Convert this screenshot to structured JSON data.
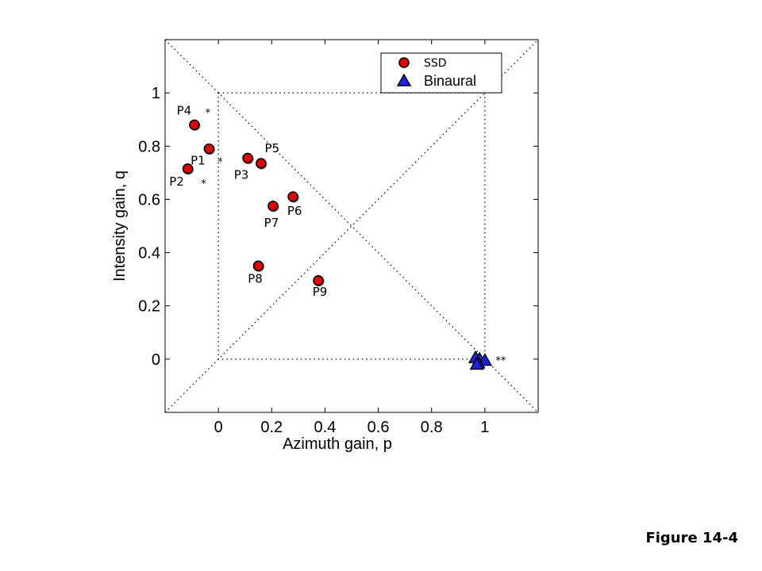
{
  "figure_caption": "Figure 14-4",
  "chart_data": {
    "type": "scatter",
    "xlabel": "Azimuth gain, p",
    "ylabel": "Intensity gain, q",
    "xlim": [
      -0.2,
      1.2
    ],
    "ylim": [
      -0.2,
      1.2
    ],
    "xticks": [
      {
        "v": 0,
        "label": "0"
      },
      {
        "v": 0.2,
        "label": "0.2"
      },
      {
        "v": 0.4,
        "label": "0.4"
      },
      {
        "v": 0.6,
        "label": "0.6"
      },
      {
        "v": 0.8,
        "label": "0.8"
      },
      {
        "v": 1,
        "label": "1"
      }
    ],
    "yticks": [
      {
        "v": 0,
        "label": "0"
      },
      {
        "v": 0.2,
        "label": "0.2"
      },
      {
        "v": 0.4,
        "label": "0.4"
      },
      {
        "v": 0.6,
        "label": "0.6"
      },
      {
        "v": 0.8,
        "label": "0.8"
      },
      {
        "v": 1,
        "label": "1"
      }
    ],
    "legend_position": "top-right",
    "series": [
      {
        "name": "SSD",
        "marker": "circle",
        "color": "#e00000",
        "points": [
          {
            "label": "P1",
            "x": -0.035,
            "y": 0.79,
            "star": "*"
          },
          {
            "label": "P2",
            "x": -0.115,
            "y": 0.715,
            "star": "*"
          },
          {
            "label": "P3",
            "x": 0.11,
            "y": 0.755
          },
          {
            "label": "P4",
            "x": -0.09,
            "y": 0.88,
            "star": "*"
          },
          {
            "label": "P5",
            "x": 0.16,
            "y": 0.735
          },
          {
            "label": "P6",
            "x": 0.28,
            "y": 0.61
          },
          {
            "label": "P7",
            "x": 0.205,
            "y": 0.575
          },
          {
            "label": "P8",
            "x": 0.15,
            "y": 0.35
          },
          {
            "label": "P9",
            "x": 0.375,
            "y": 0.295
          }
        ]
      },
      {
        "name": "Binaural",
        "marker": "triangle",
        "color": "#1f1fe0",
        "points": [
          {
            "x": 0.965,
            "y": 0.005
          },
          {
            "x": 0.98,
            "y": 0.0
          },
          {
            "x": 1.0,
            "y": -0.005
          },
          {
            "x": 0.975,
            "y": -0.015
          },
          {
            "x": 0.97,
            "y": -0.02
          }
        ],
        "annotation": "**"
      }
    ]
  }
}
